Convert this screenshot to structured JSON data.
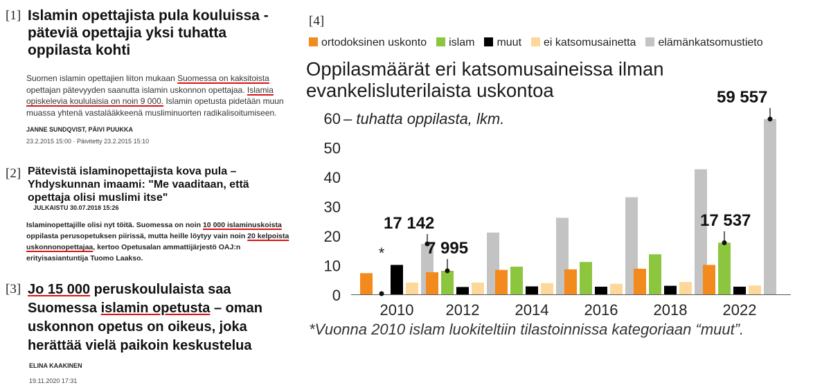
{
  "clips": [
    {
      "number": "[1]",
      "headline": "Islamin opettajista pula kouluissa - päteviä opettajia yksi tuhatta oppilasta kohti",
      "body": [
        {
          "text": "Suomen islamin opettajien liiton mukaan ",
          "ul": false
        },
        {
          "text": "Suomessa on kaksitoista",
          "ul": true
        },
        {
          "text": " opettajan pätevyyden saanutta islamin uskonnon opettajaa. ",
          "ul": false
        },
        {
          "text": "Islamia opiskelevia koululaisia on noin 9 000.",
          "ul": true
        },
        {
          "text": " Islamin opetusta pidetään muun muassa yhtenä vastalääkkeenä musliminuorten radikalisoitumiseen.",
          "ul": false
        }
      ],
      "author": "JANNE SUNDQVIST, PÄIVI PUUKKA",
      "date": "23.2.2015 15:00 · Päivitetty 23.2.2015 15:10"
    },
    {
      "number": "[2]",
      "headline": "Pätevistä islaminopettajista kova pula – Yhdyskunnan imaami: \"Me vaaditaan, että opettaja olisi muslimi itse\"",
      "published": "JULKAISTU 30.07.2018 15:26",
      "body": [
        {
          "text": "Islaminopettajille olisi nyt töitä. Suomessa on noin ",
          "ul": false
        },
        {
          "text": "10 000 islaminuskoista",
          "ul": true
        },
        {
          "text": " oppilasta perusopetuksen piirissä, mutta heille löytyy vain noin ",
          "ul": false
        },
        {
          "text": "20 kelpoista uskonnonopettajaa",
          "ul": true
        },
        {
          "text": ", kertoo Opetusalan ammattijärjestö OAJ:n erityisasiantuntija Tuomo Laakso.",
          "ul": false
        }
      ]
    },
    {
      "number": "[3]",
      "headline": [
        {
          "text": "Jo 15 000",
          "ul": true
        },
        {
          "text": " peruskoululaista saa Suomessa ",
          "ul": false
        },
        {
          "text": "islamin opetusta",
          "ul": true
        },
        {
          "text": " – oman uskonnon opetus on oikeus, joka herättää vielä paikoin keskustelua",
          "ul": false
        }
      ],
      "author": "ELINA KAAKINEN",
      "date": "19.11.2020 17:31"
    }
  ],
  "panel_number": "[4]",
  "footnote": "*Vuonna 2010 islam luokiteltiin tilastoinnissa kategoriaan “muut”.",
  "chart_data": {
    "type": "bar",
    "title": "Oppilasmäärät eri katsomusaineissa ilman evankelisluterilaista uskontoa",
    "ylabel": "tuhatta oppilasta, lkm.",
    "ylim": [
      0,
      60
    ],
    "yticks": [
      0,
      10,
      20,
      30,
      40,
      50,
      60
    ],
    "grid": false,
    "legend_position": "top",
    "categories": [
      "2010",
      "2012",
      "2014",
      "2016",
      "2018",
      "2022"
    ],
    "series": [
      {
        "name": "ortodoksinen uskonto",
        "color": "#f28a1e",
        "values": [
          7.2,
          7.5,
          8.3,
          8.5,
          8.7,
          10.0
        ]
      },
      {
        "name": "islam",
        "color": "#8cc63f",
        "values": [
          0,
          7.995,
          9.4,
          11.0,
          13.6,
          17.537
        ]
      },
      {
        "name": "muut",
        "color": "#000000",
        "values": [
          10.0,
          2.5,
          2.7,
          2.6,
          2.9,
          2.6
        ]
      },
      {
        "name": "ei katsomusainetta",
        "color": "#fdd89a",
        "values": [
          4.0,
          4.0,
          3.8,
          3.6,
          4.2,
          3.0
        ]
      },
      {
        "name": "elämänkatsomustieto",
        "color": "#c3c3c3",
        "values": [
          17.142,
          21.0,
          26.0,
          33.0,
          42.5,
          59.557
        ]
      }
    ],
    "annotations": [
      {
        "label": "17 142",
        "category": "2010",
        "series": "elämänkatsomustieto",
        "value": 17.142
      },
      {
        "label": "7 995",
        "category": "2012",
        "series": "islam",
        "value": 7.995
      },
      {
        "label": "17 537",
        "category": "2022",
        "series": "islam",
        "value": 17.537
      },
      {
        "label": "59 557",
        "category": "2022",
        "series": "elämänkatsomustieto",
        "value": 59.557
      },
      {
        "label": "*",
        "category": "2010",
        "series": "islam",
        "value": 0
      }
    ]
  }
}
